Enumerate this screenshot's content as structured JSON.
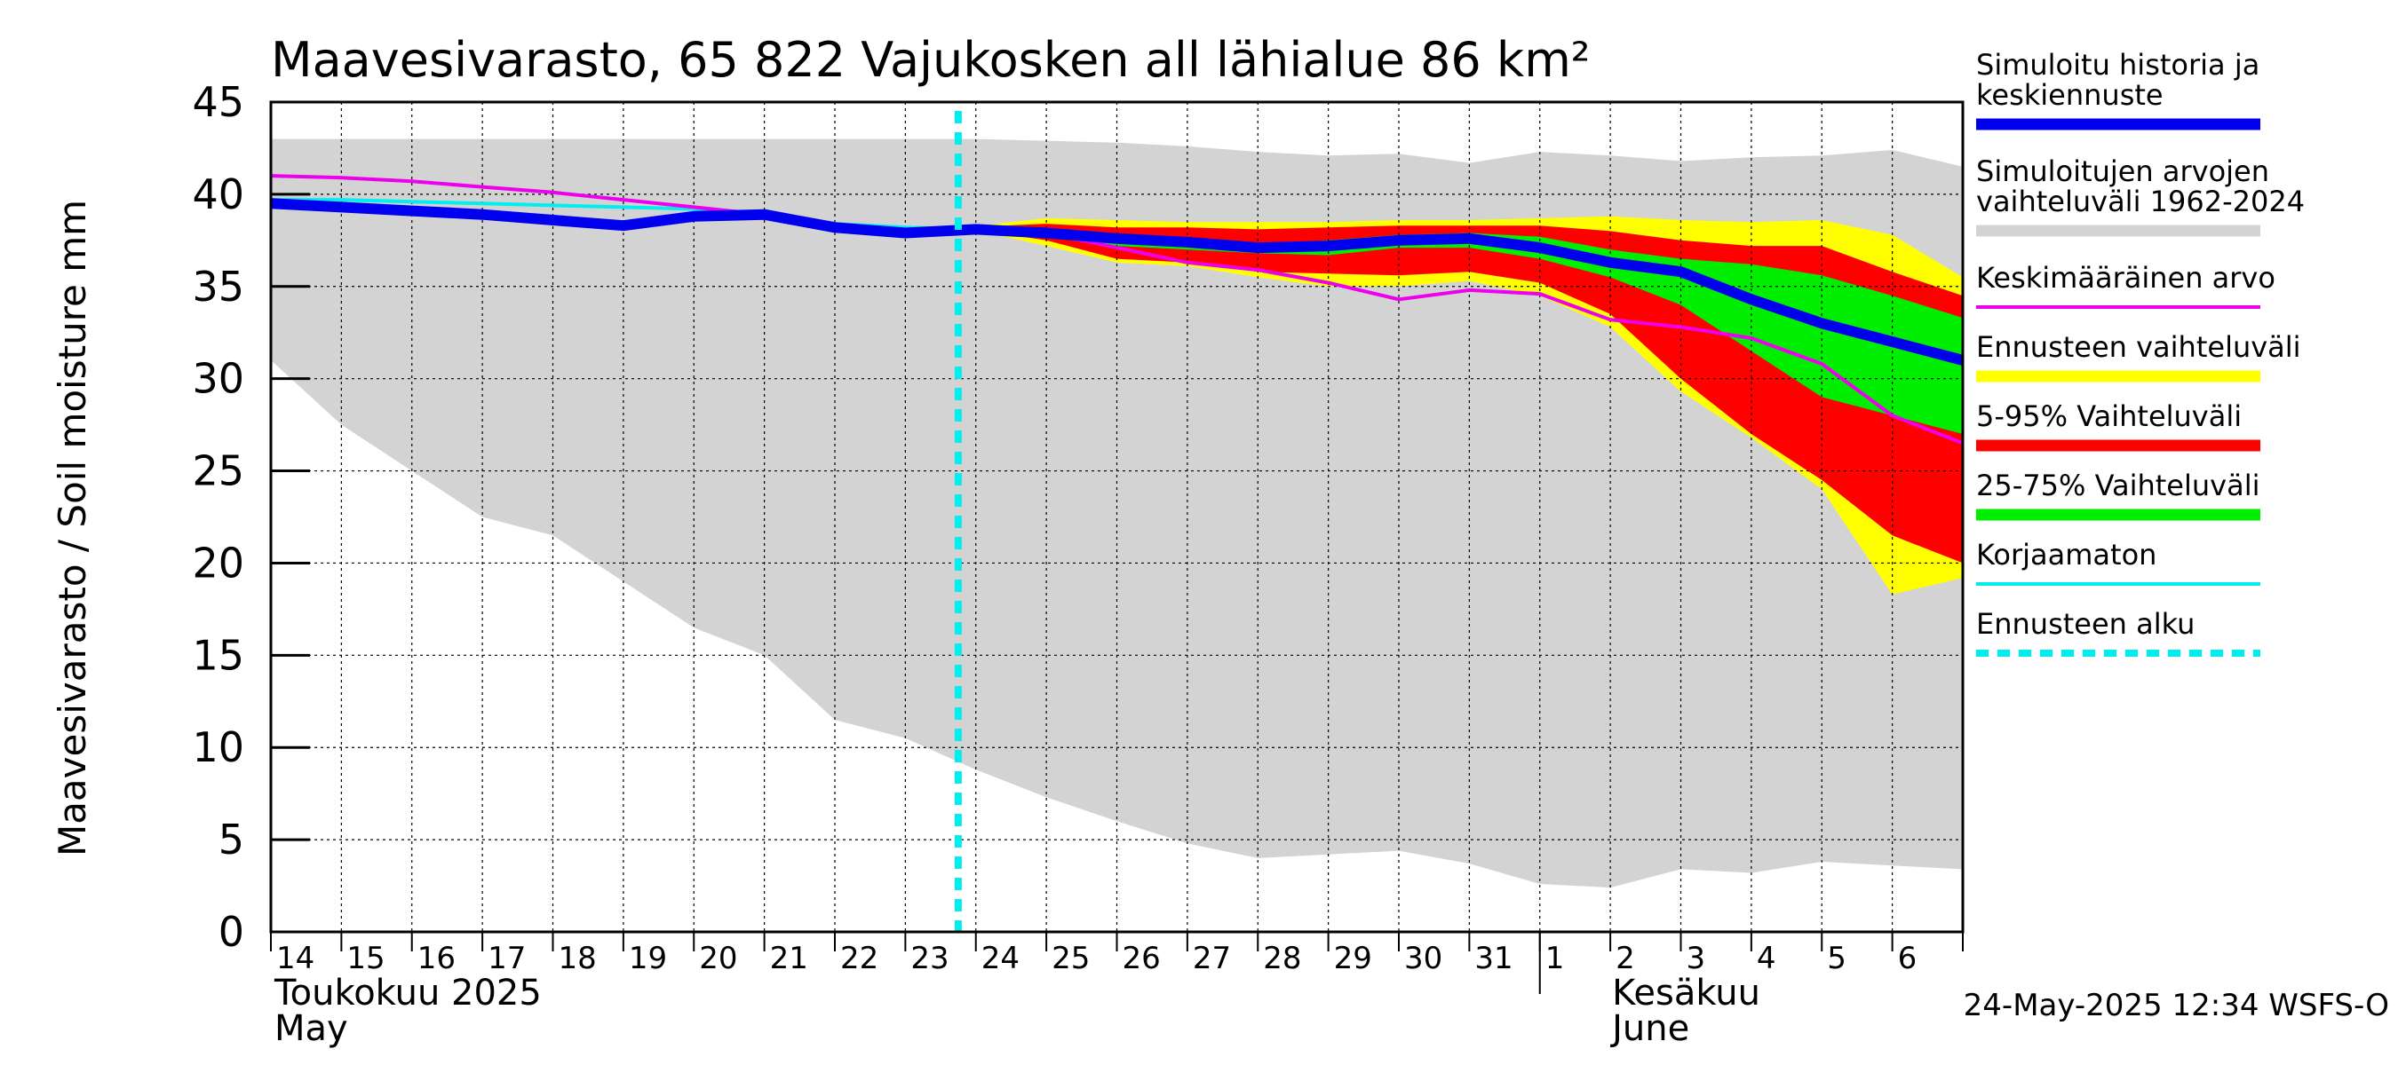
{
  "chart_data": {
    "type": "area",
    "title": "Maavesivarasto, 65 822 Vajukosken all lähialue 86 km²",
    "ylabel": "Maavesivarasto / Soil moisture   mm",
    "ylim": [
      0,
      45
    ],
    "y_ticks": [
      "0",
      "5",
      "10",
      "15",
      "20",
      "25",
      "30",
      "35",
      "40",
      "45"
    ],
    "grid": true,
    "legend_position": "right",
    "x_days": [
      "14",
      "15",
      "16",
      "17",
      "18",
      "19",
      "20",
      "21",
      "22",
      "23",
      "24",
      "25",
      "26",
      "27",
      "28",
      "29",
      "30",
      "31",
      "1",
      "2",
      "3",
      "4",
      "5",
      "6"
    ],
    "x_start": "2025-05-14",
    "month_labels": [
      {
        "line1": "Toukokuu  2025",
        "line2": "May"
      },
      {
        "line1": "Kesäkuu",
        "line2": "June"
      }
    ],
    "forecast_start": "2025-05-23T18:00",
    "footer": "24-May-2025 12:34 WSFS-O",
    "colors": {
      "history_band": "#d3d3d3",
      "forecast_range": "#ffff00",
      "range_5_95": "#ff0000",
      "range_25_75": "#00ee00",
      "simulated": "#0000ee",
      "mean": "#ee00ee",
      "uncorrected": "#00eeee",
      "forecast_start": "#00eeee"
    },
    "legend": [
      {
        "label": "Simuloitu historia ja keskiennuste",
        "lines": [
          "Simuloitu historia ja",
          "keskiennuste"
        ],
        "color": "#0000ee",
        "style": "thick"
      },
      {
        "label": "Simuloitujen arvojen vaihteluväli 1962-2024",
        "lines": [
          "Simuloitujen arvojen",
          "vaihteluväli 1962-2024"
        ],
        "color": "#d3d3d3",
        "style": "thick"
      },
      {
        "label": "Keskimääräinen arvo",
        "lines": [
          "Keskimääräinen arvo"
        ],
        "color": "#ee00ee",
        "style": "thin"
      },
      {
        "label": "Ennusteen vaihteluväli",
        "lines": [
          "Ennusteen vaihteluväli"
        ],
        "color": "#ffff00",
        "style": "thick"
      },
      {
        "label": "5-95% Vaihteluväli",
        "lines": [
          "5-95% Vaihteluväli"
        ],
        "color": "#ff0000",
        "style": "thick"
      },
      {
        "label": "25-75% Vaihteluväli",
        "lines": [
          "25-75% Vaihteluväli"
        ],
        "color": "#00ee00",
        "style": "thick"
      },
      {
        "label": "Korjaamaton",
        "lines": [
          "Korjaamaton"
        ],
        "color": "#00eeee",
        "style": "thin"
      },
      {
        "label": "Ennusteen alku",
        "lines": [
          "Ennusteen alku"
        ],
        "color": "#00eeee",
        "style": "dashed"
      }
    ],
    "series": {
      "history_band": {
        "x": [
          0,
          1,
          2,
          3,
          4,
          5,
          6,
          7,
          8,
          9,
          10,
          11,
          12,
          13,
          14,
          15,
          16,
          17,
          18,
          19,
          20,
          21,
          22,
          23,
          24
        ],
        "upper": [
          43,
          43,
          43,
          43,
          43,
          43,
          43,
          43,
          43,
          43,
          43,
          42.9,
          42.8,
          42.6,
          42.3,
          42.1,
          42.2,
          41.7,
          42.3,
          42.1,
          41.8,
          42.0,
          42.1,
          42.4,
          41.5
        ],
        "lower": [
          31,
          27.5,
          25,
          22.5,
          21.5,
          19,
          16.5,
          15,
          11.5,
          10.5,
          8.8,
          7.3,
          6,
          4.8,
          4,
          4.2,
          4.4,
          3.7,
          2.6,
          2.4,
          3.4,
          3.2,
          3.8,
          3.6,
          3.4
        ]
      },
      "forecast_range": {
        "x": [
          9.8,
          11,
          12,
          13,
          14,
          15,
          16,
          17,
          18,
          19,
          20,
          21,
          22,
          23,
          24
        ],
        "upper": [
          38.2,
          38.7,
          38.6,
          38.5,
          38.5,
          38.5,
          38.6,
          38.6,
          38.7,
          38.8,
          38.6,
          38.5,
          38.6,
          37.8,
          35.5
        ],
        "lower": [
          38.2,
          37.2,
          36.3,
          36.1,
          35.5,
          35.0,
          35.0,
          35.3,
          34.5,
          32.8,
          29.3,
          26.8,
          24.0,
          18.3,
          19.2
        ]
      },
      "range_5_95": {
        "x": [
          9.8,
          11,
          12,
          13,
          14,
          15,
          16,
          17,
          18,
          19,
          20,
          21,
          22,
          23,
          24
        ],
        "upper": [
          38.2,
          38.4,
          38.2,
          38.2,
          38.1,
          38.2,
          38.3,
          38.3,
          38.3,
          38.0,
          37.5,
          37.2,
          37.2,
          35.8,
          34.5
        ],
        "lower": [
          38.2,
          37.5,
          36.5,
          36.3,
          35.8,
          35.7,
          35.6,
          35.8,
          35.2,
          33.5,
          30.0,
          27.0,
          24.5,
          21.5,
          20.0
        ]
      },
      "range_25_75": {
        "x": [
          9.8,
          11,
          12,
          13,
          14,
          15,
          16,
          17,
          18,
          19,
          20,
          21,
          22,
          23,
          24
        ],
        "upper": [
          38.2,
          38.1,
          37.7,
          37.5,
          37.3,
          37.5,
          37.8,
          37.9,
          37.7,
          37.0,
          36.5,
          36.2,
          35.6,
          34.5,
          33.3
        ],
        "lower": [
          38.2,
          38.0,
          37.2,
          37.0,
          36.8,
          36.7,
          37.1,
          37.1,
          36.5,
          35.5,
          34.0,
          31.5,
          29.0,
          28.0,
          27.0
        ]
      },
      "simulated": {
        "x": [
          0,
          1,
          2,
          3,
          4,
          5,
          6,
          7,
          8,
          9,
          10,
          11,
          12,
          13,
          14,
          15,
          16,
          17,
          18,
          19,
          20,
          21,
          22,
          23,
          24
        ],
        "y": [
          39.5,
          39.3,
          39.1,
          38.9,
          38.6,
          38.3,
          38.8,
          38.9,
          38.2,
          37.9,
          38.1,
          37.9,
          37.6,
          37.4,
          37.1,
          37.2,
          37.5,
          37.6,
          37.1,
          36.3,
          35.8,
          34.3,
          33.0,
          32.0,
          31.0
        ]
      },
      "mean": {
        "x": [
          0,
          1,
          2,
          3,
          4,
          5,
          6,
          7,
          8,
          9,
          10,
          11,
          12,
          13,
          14,
          15,
          16,
          17,
          18,
          19,
          20,
          21,
          22,
          23,
          24
        ],
        "y": [
          41.0,
          40.9,
          40.7,
          40.4,
          40.1,
          39.7,
          39.3,
          38.9,
          38.3,
          38.1,
          38.1,
          37.9,
          37.1,
          36.3,
          35.9,
          35.2,
          34.3,
          34.8,
          34.6,
          33.2,
          32.8,
          32.2,
          30.8,
          28.0,
          26.5
        ]
      },
      "uncorrected": {
        "x": [
          0,
          1,
          2,
          3,
          4,
          5,
          6,
          7,
          8,
          9,
          10
        ],
        "y": [
          39.7,
          39.7,
          39.6,
          39.5,
          39.4,
          39.3,
          39.2,
          38.9,
          38.4,
          38.2,
          38.1
        ]
      }
    }
  }
}
